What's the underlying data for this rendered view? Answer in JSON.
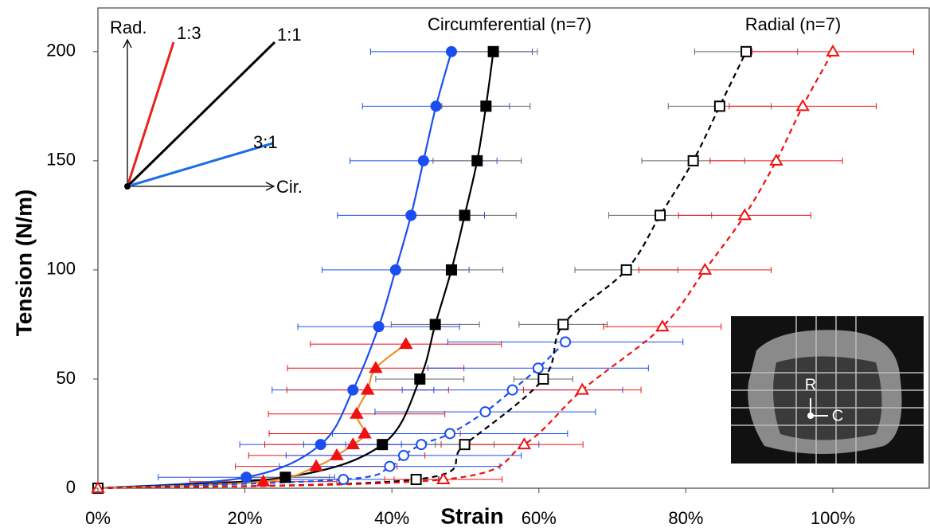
{
  "chart_data": {
    "type": "scatter-line",
    "x_label": "Strain",
    "y_label": "Tension (N/m)",
    "annotations": [
      "Circumferential (n=7)",
      "Radial (n=7)"
    ],
    "schematic": {
      "vertical": "Rad.",
      "horizontal": "Cir.",
      "lines": [
        {
          "label": "1:3",
          "color": "#e8231f"
        },
        {
          "label": "1:1",
          "color": "#000000"
        },
        {
          "label": "3:1",
          "color": "#1a6fe0"
        }
      ]
    },
    "inset_labels": [
      "R",
      "C"
    ],
    "xlim": [
      0,
      113
    ],
    "ylim": [
      0,
      220
    ],
    "xticks": [
      {
        "value": 0,
        "label": "0%"
      },
      {
        "value": 20,
        "label": "20%"
      },
      {
        "value": 40,
        "label": "40%"
      },
      {
        "value": 60,
        "label": "60%"
      },
      {
        "value": 80,
        "label": "80%"
      },
      {
        "value": 100,
        "label": "100%"
      }
    ],
    "yticks": [
      0,
      50,
      100,
      150,
      200
    ],
    "series": [
      {
        "color": "#1a4ef0",
        "line_color": "#1a4ef0",
        "marker": "circle",
        "filled": true,
        "dashed": false,
        "x": [
          0,
          20.2,
          30.3,
          34.7,
          38.2,
          40.5,
          42.6,
          44.3,
          46,
          48.1
        ],
        "values": [
          0,
          5,
          20,
          45,
          74,
          100,
          125,
          150,
          175,
          200
        ],
        "xerr": [
          0,
          12,
          11,
          11,
          11,
          10,
          10,
          10,
          10,
          11
        ]
      },
      {
        "color": "#000000",
        "line_color": "#000000",
        "err_color": "#666666",
        "marker": "square",
        "filled": true,
        "dashed": false,
        "x": [
          0,
          25.5,
          38.7,
          43.8,
          45.9,
          48.1,
          49.9,
          51.6,
          52.8,
          53.8
        ],
        "values": [
          0,
          5,
          20,
          50,
          75,
          100,
          125,
          150,
          175,
          200
        ],
        "xerr": [
          0,
          6,
          5,
          6,
          6,
          7,
          7,
          6,
          6,
          6
        ]
      },
      {
        "color": "#f01010",
        "line_color": "#f0902a",
        "marker": "triangle",
        "filled": true,
        "dashed": false,
        "x": [
          0,
          22.5,
          29.7,
          32.5,
          34.7,
          36.3,
          35.2,
          36.7,
          37.8,
          41.9
        ],
        "values": [
          0,
          3,
          10,
          15,
          20,
          25,
          34,
          45,
          55,
          66
        ],
        "xerr": [
          0,
          10,
          11,
          12,
          12,
          13,
          12,
          11,
          12,
          13
        ]
      },
      {
        "color": "#1a4ef0",
        "line_color": "#1a4ef0",
        "marker": "circle",
        "filled": false,
        "dashed": true,
        "x": [
          0,
          33.4,
          39.7,
          41.6,
          44,
          47.9,
          52.7,
          56.4,
          59.9,
          63.6
        ],
        "values": [
          0,
          4,
          10,
          15,
          20,
          25,
          35,
          45,
          55,
          67
        ],
        "xerr": [
          0,
          13,
          15,
          16,
          16,
          16,
          15,
          15,
          15,
          16
        ]
      },
      {
        "color": "#000000",
        "line_color": "#000000",
        "err_color": "#666666",
        "marker": "square",
        "filled": false,
        "dashed": true,
        "x": [
          0,
          43.3,
          49.9,
          60.6,
          63.3,
          71.9,
          76.5,
          81,
          84.6,
          88.2
        ],
        "values": [
          0,
          4,
          20,
          50,
          75,
          100,
          125,
          150,
          175,
          200
        ],
        "xerr": [
          0,
          3,
          4,
          4,
          6,
          7,
          7,
          7,
          7,
          7
        ]
      },
      {
        "color": "#f01010",
        "line_color": "#f01010",
        "marker": "triangle",
        "filled": false,
        "dashed": true,
        "x": [
          0,
          47,
          58,
          65.9,
          76.8,
          82.6,
          88,
          92.3,
          95.9,
          100
        ],
        "values": [
          0,
          4,
          20,
          45,
          74,
          100,
          125,
          150,
          175,
          200
        ],
        "xerr": [
          0,
          8,
          8,
          8,
          8,
          9,
          9,
          9,
          10,
          11
        ]
      }
    ]
  }
}
